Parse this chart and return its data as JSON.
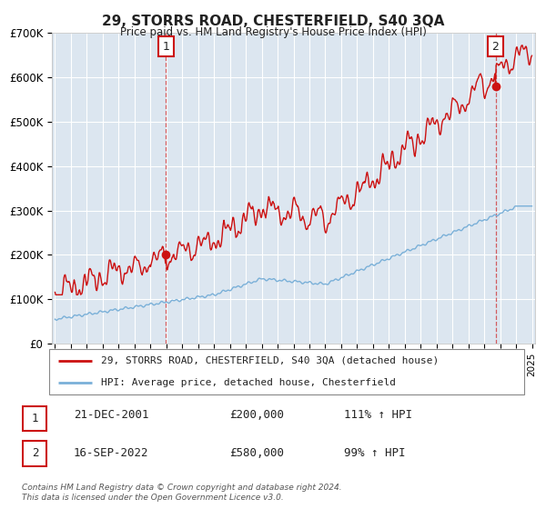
{
  "title": "29, STORRS ROAD, CHESTERFIELD, S40 3QA",
  "subtitle": "Price paid vs. HM Land Registry's House Price Index (HPI)",
  "background_color": "#dce6f0",
  "hpi_color": "#7ab0d8",
  "price_color": "#cc1111",
  "ylim": [
    0,
    700000
  ],
  "yticks": [
    0,
    100000,
    200000,
    300000,
    400000,
    500000,
    600000,
    700000
  ],
  "ytick_labels": [
    "£0",
    "£100K",
    "£200K",
    "£300K",
    "£400K",
    "£500K",
    "£600K",
    "£700K"
  ],
  "xstart": 1995,
  "xend": 2025,
  "sale1_date": 2001.97,
  "sale1_price": 200000,
  "sale1_label": "1",
  "sale2_date": 2022.71,
  "sale2_price": 580000,
  "sale2_label": "2",
  "legend_line1": "29, STORRS ROAD, CHESTERFIELD, S40 3QA (detached house)",
  "legend_line2": "HPI: Average price, detached house, Chesterfield",
  "table_row1": [
    "1",
    "21-DEC-2001",
    "£200,000",
    "111% ↑ HPI"
  ],
  "table_row2": [
    "2",
    "16-SEP-2022",
    "£580,000",
    "99% ↑ HPI"
  ],
  "footnote1": "Contains HM Land Registry data © Crown copyright and database right 2024.",
  "footnote2": "This data is licensed under the Open Government Licence v3.0."
}
